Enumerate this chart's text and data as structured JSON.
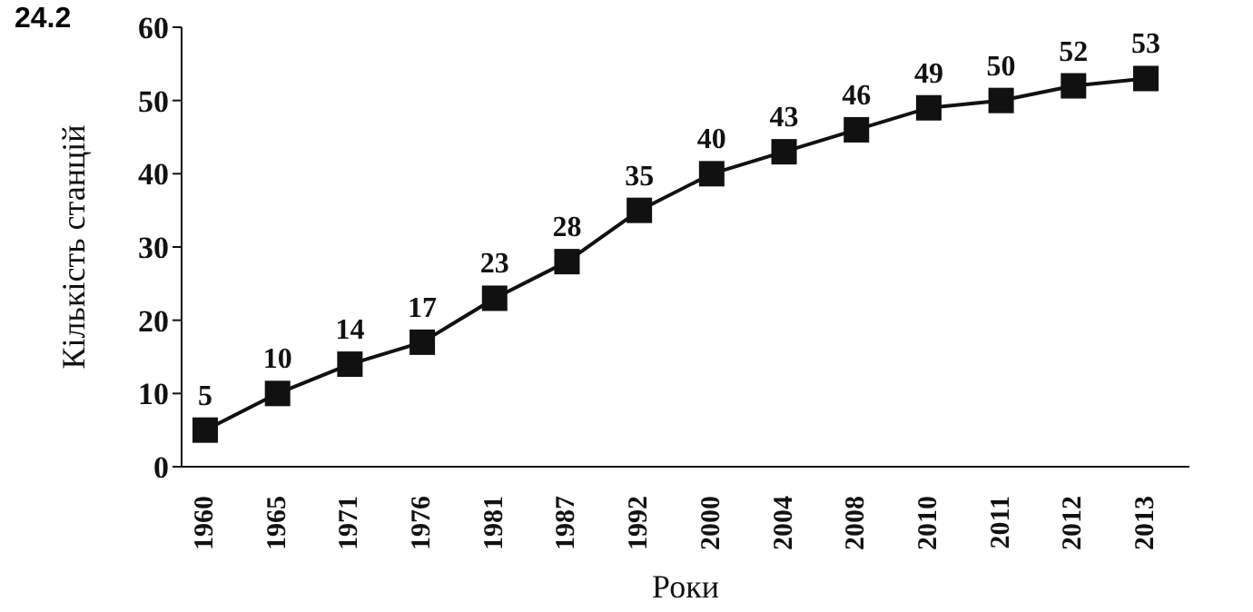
{
  "chart_data": {
    "type": "line",
    "xlabel": "Роки",
    "ylabel": "Кількість станцій",
    "annotations": [
      "24.2"
    ],
    "categories": [
      "1960",
      "1965",
      "1971",
      "1976",
      "1981",
      "1987",
      "1992",
      "2000",
      "2004",
      "2008",
      "2010",
      "2011",
      "2012",
      "2013"
    ],
    "series": [
      {
        "color": "#111111",
        "values": [
          5,
          10,
          14,
          17,
          23,
          28,
          35,
          40,
          43,
          46,
          49,
          50,
          52,
          53
        ]
      }
    ],
    "ylim": [
      0,
      60
    ],
    "yticks": [
      0,
      10,
      20,
      30,
      40,
      50,
      60
    ],
    "marker": "square",
    "line_style": "solid",
    "data_labels": true
  }
}
